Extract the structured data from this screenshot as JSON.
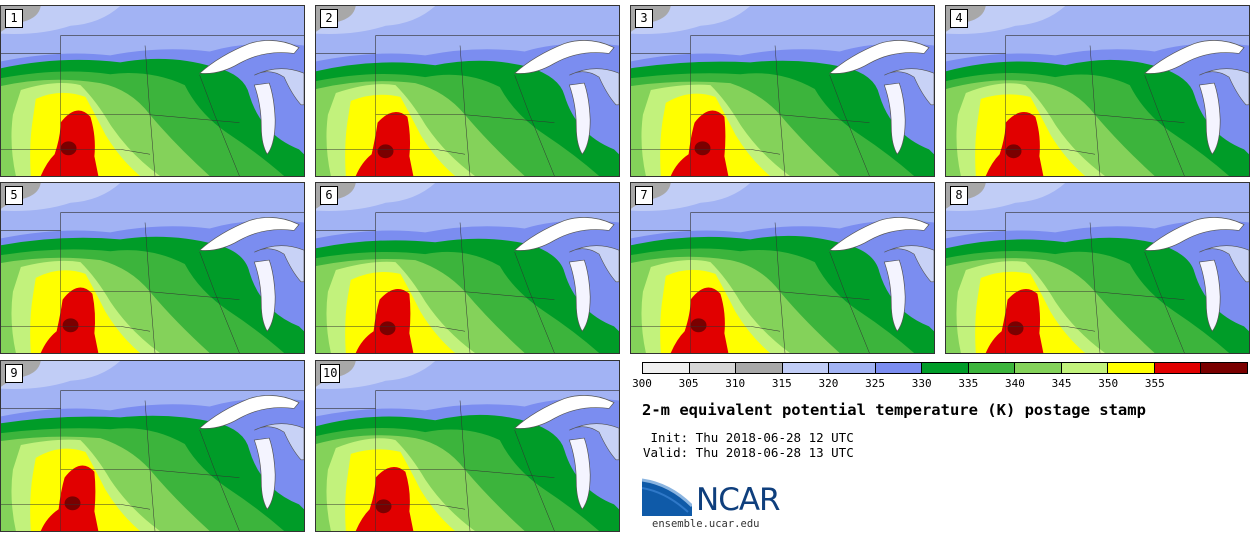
{
  "panels": [
    {
      "label": "1"
    },
    {
      "label": "2"
    },
    {
      "label": "3"
    },
    {
      "label": "4"
    },
    {
      "label": "5"
    },
    {
      "label": "6"
    },
    {
      "label": "7"
    },
    {
      "label": "8"
    },
    {
      "label": "9"
    },
    {
      "label": "10"
    }
  ],
  "colorbar": {
    "colors": [
      "#f0f0f0",
      "#d6d6d6",
      "#a8a8a8",
      "#c1cdf6",
      "#a2b3f4",
      "#7b8df0",
      "#009c28",
      "#3cb43c",
      "#84d25a",
      "#c2f27c",
      "#ffff00",
      "#e10000",
      "#7a0000"
    ],
    "ticks": [
      "300",
      "305",
      "310",
      "315",
      "320",
      "325",
      "330",
      "335",
      "340",
      "345",
      "350",
      "355"
    ]
  },
  "title": "2-m equivalent potential temperature (K) postage stamp",
  "init": " Init: Thu 2018-06-28 12 UTC",
  "valid": "Valid: Thu 2018-06-28 13 UTC",
  "logo": {
    "name": "NCAR",
    "url": "ensemble.ucar.edu",
    "brand_color": "#0f3f7d"
  }
}
